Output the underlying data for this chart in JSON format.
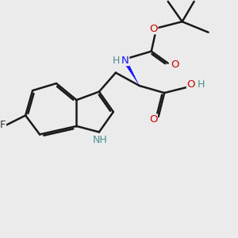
{
  "bg_color": "#ebebeb",
  "bond_color": "#1a1a1a",
  "N_color": "#1414ff",
  "O_color": "#cc0000",
  "F_color": "#333333",
  "NH_color": "#4a9090",
  "line_width": 1.8,
  "figsize": [
    3.0,
    3.0
  ],
  "dpi": 100,
  "xlim": [
    0,
    10
  ],
  "ylim": [
    0,
    10
  ]
}
